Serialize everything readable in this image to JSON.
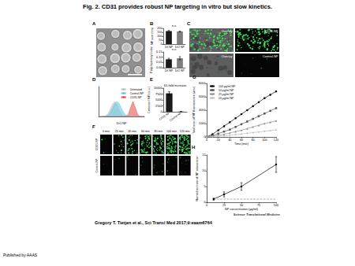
{
  "title": "Fig. 2. CD31 provides robust NP targeting in vitro but slow kinetics.",
  "citation": "Gregory T. Tietjen et al., Sci Transl Med 2017;9:eaam6764",
  "journal": "Science Translational Medicine",
  "publisher": "Published by AAAS",
  "panels": {
    "A": {
      "label": "A"
    },
    "C": {
      "label": "C",
      "images": [
        "Overlay",
        "CD31-NP",
        "Overlay",
        "Control-NP"
      ]
    },
    "F": {
      "label": "F",
      "times": [
        "0 min",
        "20 min",
        "40 min",
        "60 min",
        "80 min",
        "100 min",
        "120 min"
      ],
      "rows": [
        "CD31-NP",
        "Control-NP"
      ]
    }
  },
  "chart_data": [
    {
      "panel": "B",
      "type": "bar",
      "categories": [
        "DiI NP",
        "DiO NP"
      ],
      "values": [
        165,
        160
      ],
      "errors": [
        8,
        6
      ],
      "colors": [
        "#1a1a1a",
        "#7f7f7f"
      ],
      "ylabel": "NP size (nm)",
      "ylim": [
        0,
        200
      ],
      "yticks": [
        0,
        50,
        100,
        150,
        200
      ],
      "annotation": "n.s.",
      "grid": false
    },
    {
      "type": "bar",
      "categories": [
        "DiI NP",
        "DiO NP"
      ],
      "values": [
        0.08,
        0.09
      ],
      "errors": [
        0.01,
        0.015
      ],
      "colors": [
        "#1a1a1a",
        "#7f7f7f"
      ],
      "ylabel": "Polydispersity index",
      "ylim": [
        0,
        0.15
      ],
      "yticks": [
        {
          "value": 0,
          "label": "0.00"
        },
        {
          "value": 0.05,
          "label": "0.05"
        },
        {
          "value": 0.1,
          "label": "0.10"
        },
        {
          "value": 0.15,
          "label": "0.15"
        }
      ],
      "annotation": "n.s.",
      "grid": false
    },
    {
      "panel": "D",
      "type": "area",
      "xlabel": "DiO NP",
      "x": [
        0,
        0.5,
        1,
        1.5,
        2,
        2.5,
        3,
        3.5,
        4,
        4.5,
        5,
        5.5,
        6,
        6.5,
        7,
        7.5,
        8,
        8.5,
        9,
        9.5,
        10
      ],
      "series": [
        {
          "name": "Untreated",
          "color": "#bdbdbd",
          "values": [
            0,
            0,
            1,
            4,
            17,
            46,
            82,
            100,
            82,
            46,
            17,
            4,
            1,
            0,
            0,
            0,
            0,
            0,
            0,
            0,
            0
          ]
        },
        {
          "name": "Control-NP",
          "color": "#5bc8e8",
          "values": [
            0,
            0,
            0,
            2,
            8,
            25,
            54,
            86,
            100,
            86,
            54,
            25,
            8,
            2,
            0,
            0,
            0,
            0,
            0,
            0,
            0
          ]
        },
        {
          "name": "CD31-NP",
          "color": "#e8463a",
          "values": [
            0,
            0,
            0,
            0,
            0,
            0,
            0,
            0,
            0,
            0,
            0,
            0,
            1,
            14,
            61,
            100,
            61,
            14,
            1,
            0,
            0
          ]
        }
      ],
      "xlim": [
        0,
        10
      ],
      "ylim": [
        0,
        200
      ],
      "tick_labels": false,
      "legend": "top-right",
      "grid": false
    },
    {
      "panel": "E",
      "type": "bar",
      "categories": [
        "CD31-NP",
        "Control-NP"
      ],
      "values": [
        7800,
        128
      ],
      "errors": [
        700,
        20
      ],
      "colors": [
        "#1a1a1a",
        "#7f7f7f"
      ],
      "ylabel": "Corrected MFI (a.u.)",
      "ylim": [
        0,
        10000
      ],
      "yticks": [
        0,
        2500,
        5000,
        7500,
        10000
      ],
      "annotation": "61-fold increase",
      "grid": false
    },
    {
      "panel": "G",
      "type": "line",
      "xlabel": "Time (min)",
      "ylabel": "Total area of NP fluorescence (μm²)",
      "x": [
        0,
        10,
        20,
        30,
        40,
        50,
        60,
        70,
        80,
        90,
        100,
        110,
        120
      ],
      "series": [
        {
          "name": "100 μg/ml NP",
          "color": "#000000",
          "marker": "circle",
          "values": [
            0,
            400,
            1000,
            1600,
            2200,
            2800,
            3400,
            4000,
            4600,
            5200,
            5800,
            6300,
            6800
          ]
        },
        {
          "name": "50 μg/ml NP",
          "color": "#555555",
          "marker": "rect",
          "values": [
            0,
            200,
            500,
            800,
            1100,
            1500,
            1900,
            2300,
            2700,
            3100,
            3500,
            3900,
            4300
          ]
        },
        {
          "name": "25 μg/ml NP",
          "color": "#8c8c8c",
          "marker": "triangle",
          "values": [
            0,
            100,
            250,
            400,
            600,
            800,
            1000,
            1250,
            1500,
            1750,
            2000,
            2200,
            2400
          ]
        },
        {
          "name": "10 μg/ml NP",
          "color": "#bfbfbf",
          "marker": "diamond",
          "values": [
            0,
            50,
            100,
            150,
            250,
            350,
            450,
            550,
            650,
            750,
            850,
            950,
            1050
          ]
        }
      ],
      "xlim": [
        0,
        120
      ],
      "xticks": [
        0,
        20,
        40,
        60,
        80,
        100,
        120
      ],
      "ylim": [
        0,
        8000
      ],
      "yticks": [
        0,
        2000,
        4000,
        6000,
        8000
      ],
      "legend": "top-left",
      "grid": false
    },
    {
      "panel": "H",
      "type": "line",
      "xlabel": "NP concentration (μg/ml)",
      "ylabel": "Normalized rate of NP association",
      "x": [
        10,
        25,
        50,
        100
      ],
      "series": [
        {
          "color": "#000000",
          "marker": "circle",
          "line_style": "solid",
          "values": [
            1,
            2.5,
            5,
            12
          ],
          "errors": [
            0.3,
            0.8,
            1.2,
            2.5
          ]
        },
        {
          "color": "#888888",
          "line_style": "dashed",
          "values": [
            1,
            1,
            1,
            1
          ]
        }
      ],
      "xlim": [
        0,
        100
      ],
      "xticks": [
        0,
        25,
        50,
        75,
        100
      ],
      "ylim": [
        0,
        15
      ],
      "yticks": [
        0,
        5,
        10,
        15
      ],
      "grid": false
    }
  ]
}
